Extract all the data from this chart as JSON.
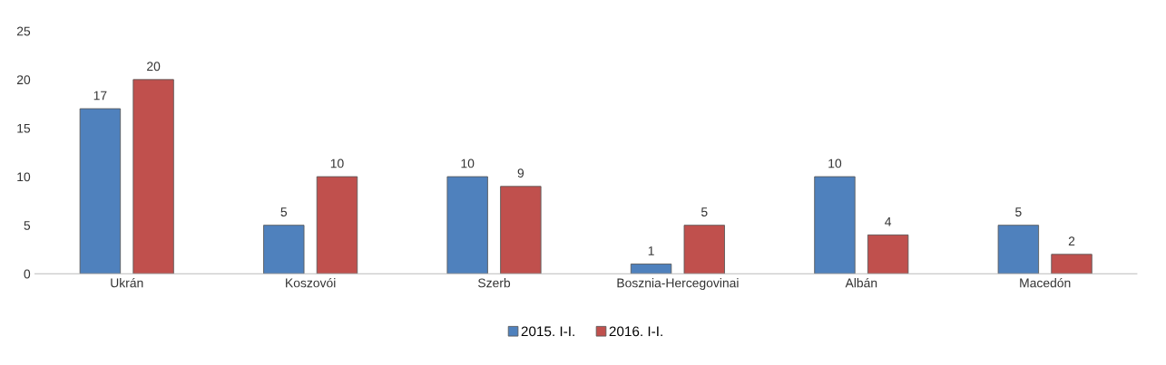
{
  "chart_data": {
    "type": "bar",
    "categories": [
      "Ukrán",
      "Koszovói",
      "Szerb",
      "Bosznia-Hercegovinai",
      "Albán",
      "Macedón"
    ],
    "series": [
      {
        "name": "2015. I-I.",
        "color": "#4f81bd",
        "values": [
          17,
          5,
          10,
          1,
          10,
          5
        ]
      },
      {
        "name": "2016. I-I.",
        "color": "#c0504d",
        "values": [
          20,
          10,
          9,
          5,
          4,
          2
        ]
      }
    ],
    "ylim": [
      0,
      25
    ],
    "yticks": [
      0,
      5,
      10,
      15,
      20,
      25
    ],
    "grid": false,
    "legend": "bottom",
    "data_labels": true
  }
}
